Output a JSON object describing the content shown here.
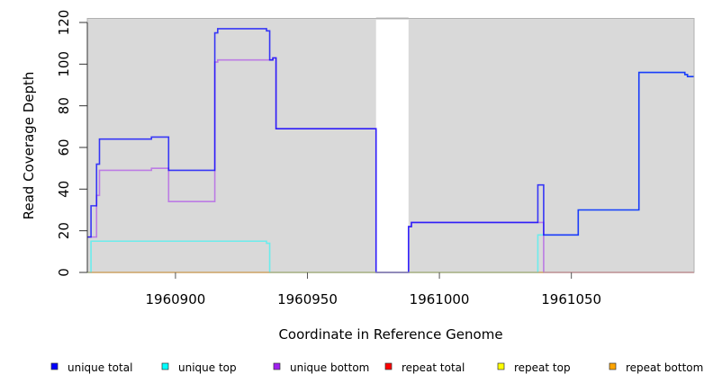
{
  "chart_data": {
    "type": "line",
    "title": "",
    "xlabel": "Coordinate in Reference Genome",
    "ylabel": "Read Coverage Depth",
    "xlim": [
      1960866.6,
      1961096.5
    ],
    "ylim": [
      0,
      122
    ],
    "xticks": [
      1960900,
      1960950,
      1961000,
      1961050
    ],
    "xtick_labels": [
      "1960900",
      "1960950",
      "1961000",
      "1961050"
    ],
    "yticks": [
      0,
      20,
      40,
      60,
      80,
      100,
      120
    ],
    "ytick_labels": [
      "0",
      "20",
      "40",
      "60",
      "80",
      "100",
      "120"
    ],
    "gaps": [
      [
        1960976,
        1960988.3
      ]
    ],
    "legend_position": "bottom",
    "series": [
      {
        "name": "repeat total",
        "color": "#ff0000",
        "opacity": 0.5,
        "steps": [
          [
            1960866.6,
            0
          ],
          [
            1961096.5,
            0
          ]
        ]
      },
      {
        "name": "repeat top",
        "color": "#ffff00",
        "opacity": 0.5,
        "steps": [
          [
            1960866.6,
            0
          ],
          [
            1961096.5,
            0
          ]
        ]
      },
      {
        "name": "repeat bottom",
        "color": "#ffa500",
        "opacity": 0.6,
        "steps": [
          [
            1960866.6,
            0
          ],
          [
            1961039.5,
            0
          ]
        ]
      },
      {
        "name": "unique top",
        "color": "#00ffff",
        "opacity": 0.5,
        "steps": [
          [
            1960866.6,
            0
          ],
          [
            1960868,
            15
          ],
          [
            1960934.5,
            14
          ],
          [
            1960935.7,
            0
          ],
          [
            1961037.3,
            18
          ],
          [
            1961052.6,
            30
          ],
          [
            1961075.6,
            96
          ],
          [
            1961093,
            95
          ],
          [
            1961094,
            94
          ],
          [
            1961096.5,
            94
          ]
        ]
      },
      {
        "name": "unique bottom",
        "color": "#a020f0",
        "opacity": 0.5,
        "steps": [
          [
            1960866.6,
            17
          ],
          [
            1960870.1,
            37
          ],
          [
            1960871.2,
            49
          ],
          [
            1960890.9,
            50
          ],
          [
            1960897.4,
            34
          ],
          [
            1960914.9,
            101
          ],
          [
            1960916,
            102
          ],
          [
            1960936.9,
            103
          ],
          [
            1960938.1,
            69
          ],
          [
            1960976,
            0
          ],
          [
            1960988.3,
            22
          ],
          [
            1960989.4,
            24
          ],
          [
            1961039.5,
            0
          ],
          [
            1961096.5,
            0
          ]
        ]
      },
      {
        "name": "unique total",
        "color": "#0000ff",
        "opacity": 0.75,
        "steps": [
          [
            1960866.6,
            17
          ],
          [
            1960868,
            32
          ],
          [
            1960870.1,
            52
          ],
          [
            1960871.2,
            64
          ],
          [
            1960890.9,
            65
          ],
          [
            1960897.4,
            49
          ],
          [
            1960914.9,
            115
          ],
          [
            1960916,
            117
          ],
          [
            1960934.5,
            116
          ],
          [
            1960935.7,
            102
          ],
          [
            1960936.9,
            103
          ],
          [
            1960938.1,
            69
          ],
          [
            1960976,
            0
          ],
          [
            1960988.3,
            22
          ],
          [
            1960989.4,
            24
          ],
          [
            1961037.3,
            42
          ],
          [
            1961039.5,
            18
          ],
          [
            1961052.6,
            30
          ],
          [
            1961075.6,
            96
          ],
          [
            1961093,
            95
          ],
          [
            1961094,
            94
          ],
          [
            1961096.5,
            94
          ]
        ]
      }
    ],
    "legend": [
      {
        "label": "unique total",
        "color": "#0000ff"
      },
      {
        "label": "unique top",
        "color": "#00ffff"
      },
      {
        "label": "unique bottom",
        "color": "#a020f0"
      },
      {
        "label": "repeat total",
        "color": "#ff0000"
      },
      {
        "label": "repeat top",
        "color": "#ffff00"
      },
      {
        "label": "repeat bottom",
        "color": "#ffa500"
      }
    ]
  }
}
